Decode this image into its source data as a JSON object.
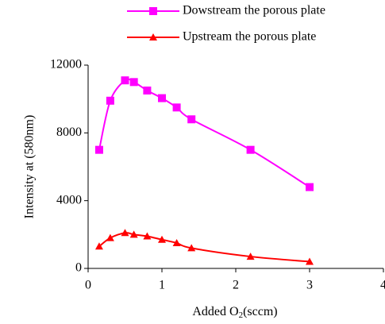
{
  "chart_data": {
    "type": "line",
    "xlabel": {
      "text": "Added O",
      "sub": "2",
      "suffix": "(sccm)"
    },
    "ylabel": "Intensity at (580nm)",
    "xlim": [
      0,
      4
    ],
    "xticks": [
      0,
      1,
      2,
      3,
      4
    ],
    "ylim": [
      0,
      12000
    ],
    "yticks": [
      0,
      4000,
      8000,
      12000
    ],
    "grid": false,
    "legend": "top",
    "series": [
      {
        "name": "Dowstream the porous plate",
        "color": "#ff00ff",
        "marker": "square",
        "x": [
          0.15,
          0.3,
          0.5,
          0.62,
          0.8,
          1.0,
          1.2,
          1.4,
          2.2,
          3.0
        ],
        "values": [
          7000,
          9900,
          11100,
          11000,
          10500,
          10050,
          9500,
          8800,
          7000,
          4800
        ]
      },
      {
        "name": "Upstream the porous plate",
        "color": "#ff0000",
        "marker": "triangle",
        "x": [
          0.15,
          0.3,
          0.5,
          0.62,
          0.8,
          1.0,
          1.2,
          1.4,
          2.2,
          3.0
        ],
        "values": [
          1300,
          1800,
          2100,
          2000,
          1900,
          1700,
          1500,
          1200,
          700,
          400
        ]
      }
    ]
  }
}
